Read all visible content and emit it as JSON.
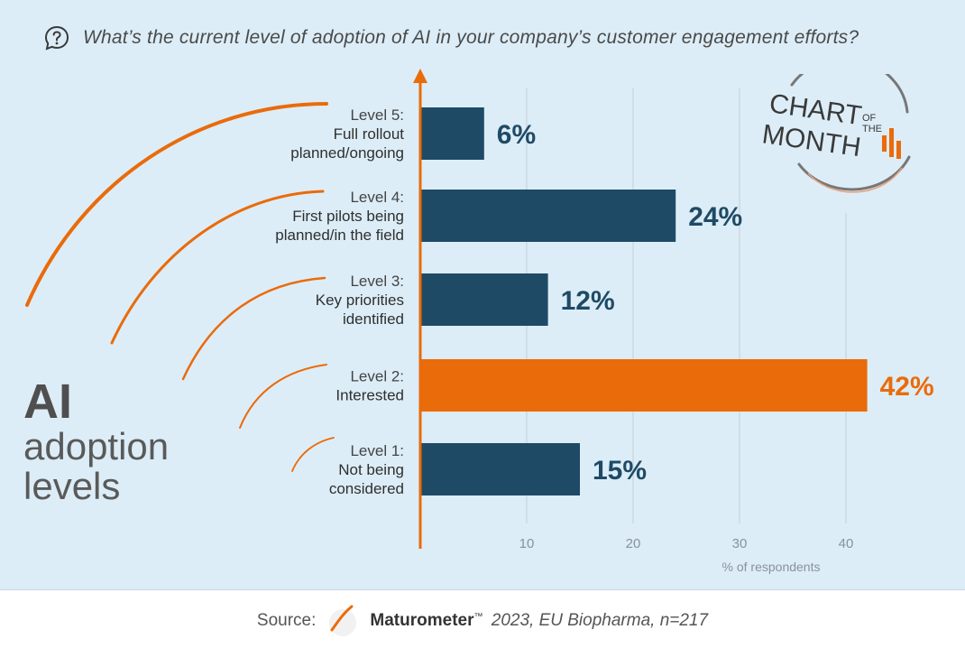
{
  "question": {
    "text": "What’s the current level of adoption of AI in your company’s customer engagement efforts?",
    "icon": "question-bubble-icon"
  },
  "side_title": {
    "line1": "AI",
    "line2": "adoption",
    "line3": "levels"
  },
  "badge": {
    "line1": "CHART",
    "of": "OF",
    "the": "THE",
    "line2": "MONTH"
  },
  "source": {
    "label": "Source:",
    "brand": "Maturometer",
    "tm": "™",
    "rest": "2023, EU Biopharma, n=217"
  },
  "colors": {
    "background": "#dcedf7",
    "bar": "#1f4a66",
    "highlight": "#ea6b0a",
    "axis": "#ea6b0a",
    "grid": "#c5ced6"
  },
  "chart_data": {
    "type": "bar",
    "orientation": "horizontal",
    "categories": [
      [
        "Level 5:",
        "Full rollout",
        "planned/ongoing"
      ],
      [
        "Level 4:",
        "First pilots being",
        "planned/in the field"
      ],
      [
        "Level 3:",
        "Key priorities",
        "identified"
      ],
      [
        "Level 2:",
        "Interested"
      ],
      [
        "Level 1:",
        "Not being",
        "considered"
      ]
    ],
    "values": [
      6,
      24,
      12,
      42,
      15
    ],
    "value_labels": [
      "6%",
      "24%",
      "12%",
      "42%",
      "15%"
    ],
    "highlight_index": 3,
    "xlabel": "% of respondents",
    "xticks": [
      10,
      20,
      30,
      40
    ],
    "xlim": [
      0,
      50
    ],
    "grid": true
  }
}
